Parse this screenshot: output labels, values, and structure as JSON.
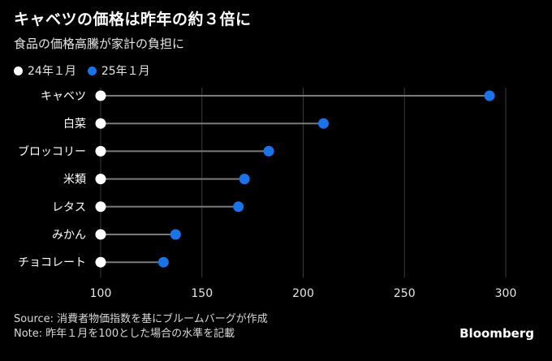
{
  "title": "キャベツの価格は昨年の約３倍に",
  "subtitle": "食品の価格高騰が家計の負担に",
  "legend": [
    {
      "label": "24年１月",
      "color": "#ffffff"
    },
    {
      "label": "25年１月",
      "color": "#1a73e8"
    }
  ],
  "chart_data": {
    "type": "dumbbell",
    "categories": [
      "キャベツ",
      "白菜",
      "ブロッコリー",
      "米類",
      "レタス",
      "みかん",
      "チョコレート"
    ],
    "series": [
      {
        "name": "24年１月",
        "values": [
          100,
          100,
          100,
          100,
          100,
          100,
          100
        ]
      },
      {
        "name": "25年１月",
        "values": [
          292,
          210,
          183,
          171,
          168,
          137,
          131
        ]
      }
    ],
    "xlim": [
      100,
      300
    ],
    "xticks": [
      "100",
      "150",
      "200",
      "250",
      "300"
    ],
    "grid": "vertical",
    "legend_position": "top-left"
  },
  "footer": {
    "source": "Source: 消費者物価指数を基にブルームバーグが作成",
    "note": "Note: 昨年１月を100とした場合の水準を記載"
  },
  "brand": "Bloomberg",
  "colors": {
    "background": "#000000",
    "start_dot": "#ffffff",
    "end_dot": "#1a73e8",
    "connector": "#7a7a7a",
    "grid": "#3a3a3a"
  }
}
